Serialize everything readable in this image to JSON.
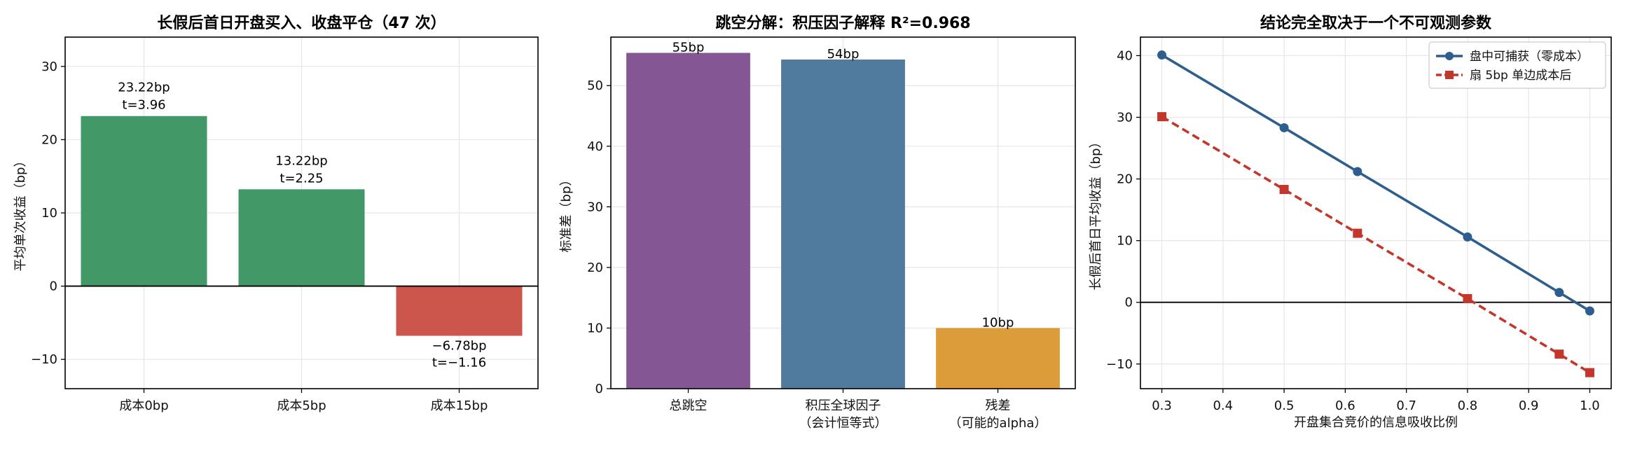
{
  "chart_data": [
    {
      "type": "bar",
      "title": "长假后首日开盘买入、收盘平仓（47 次）",
      "xlabel": "",
      "ylabel": "平均单次收益（bp）",
      "ylim": [
        -14,
        34
      ],
      "yticks": [
        -10,
        0,
        10,
        20,
        30
      ],
      "grid": true,
      "categories": [
        [
          "成本0bp"
        ],
        [
          "成本5bp"
        ],
        [
          "成本15bp"
        ]
      ],
      "values": [
        23.22,
        13.22,
        -6.78
      ],
      "colors": [
        "#3e9664",
        "#3e9664",
        "#cc5348"
      ],
      "labels": [
        {
          "value": "23.22bp",
          "t": "t=3.96"
        },
        {
          "value": "13.22bp",
          "t": "t=2.25"
        },
        {
          "value": "−6.78bp",
          "t": "t=−1.16"
        }
      ]
    },
    {
      "type": "bar",
      "title": "跳空分解：积压因子解释 R²=0.968",
      "xlabel": "",
      "ylabel": "标准差（bp）",
      "ylim": [
        0,
        58
      ],
      "yticks": [
        0,
        10,
        20,
        30,
        40,
        50
      ],
      "grid": true,
      "categories": [
        [
          "总跳空"
        ],
        [
          "积压全球因子",
          "（会计恒等式）"
        ],
        [
          "残差",
          "（可能的alpha）"
        ]
      ],
      "values": [
        55.4,
        54.3,
        10.0
      ],
      "colors": [
        "#835392",
        "#4c779c",
        "#db9a35"
      ],
      "labels": [
        {
          "value": "55bp"
        },
        {
          "value": "54bp"
        },
        {
          "value": "10bp"
        }
      ]
    },
    {
      "type": "line",
      "title": "结论完全取决于一个不可观测参数",
      "xlabel": "开盘集合竞价的信息吸收比例",
      "ylabel": "长假后首日平均收益（bp）",
      "xlim": [
        0.265,
        1.035
      ],
      "ylim": [
        -14,
        43
      ],
      "xticks": [
        0.3,
        0.4,
        0.5,
        0.6,
        0.7,
        0.8,
        0.9,
        1.0
      ],
      "xtick_labels": [
        "0.3",
        "0.4",
        "0.5",
        "0.6",
        "0.7",
        "0.8",
        "0.9",
        "1.0"
      ],
      "yticks": [
        -10,
        0,
        10,
        20,
        30,
        40
      ],
      "grid": true,
      "legend_position": "top-right",
      "series": [
        {
          "name": "盘中可捕获（零成本）",
          "color": "#2e5e8e",
          "marker": "circle",
          "dash": "solid",
          "x": [
            0.3,
            0.5,
            0.62,
            0.8,
            0.95,
            1.0
          ],
          "y": [
            40.1,
            28.3,
            21.2,
            10.6,
            1.6,
            -1.4
          ]
        },
        {
          "name": "扇 5bp 单边成本后",
          "color": "#c3362b",
          "marker": "square",
          "dash": "dashed",
          "x": [
            0.3,
            0.5,
            0.62,
            0.8,
            0.95,
            1.0
          ],
          "y": [
            30.1,
            18.3,
            11.2,
            0.6,
            -8.4,
            -11.4
          ]
        }
      ]
    }
  ]
}
